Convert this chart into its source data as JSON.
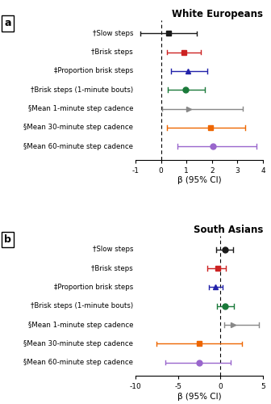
{
  "panel_a": {
    "title": "White Europeans",
    "xlabel": "β (95% CI)",
    "xlim": [
      -1,
      4
    ],
    "xticks": [
      -1,
      0,
      1,
      2,
      3,
      4
    ],
    "xticklabels": [
      "-1",
      "0",
      "1",
      "2",
      "3",
      "4"
    ],
    "vline": 0,
    "labels": [
      "†Slow steps",
      "†Brisk steps",
      "‡Proportion brisk steps",
      "†Brisk steps (1-minute bouts)",
      "§Mean 1-minute step cadence",
      "§Mean 30-minute step cadence",
      "§Mean 60-minute step cadence"
    ],
    "estimates": [
      0.3,
      0.9,
      1.05,
      0.95,
      1.1,
      1.95,
      2.05
    ],
    "ci_low": [
      -0.8,
      0.25,
      0.38,
      0.28,
      0.05,
      0.25,
      0.65
    ],
    "ci_high": [
      1.42,
      1.55,
      1.82,
      1.72,
      3.2,
      3.3,
      3.75
    ],
    "colors": [
      "#1a1a1a",
      "#cc2222",
      "#2222aa",
      "#1a7a3a",
      "#888888",
      "#ee6600",
      "#9966cc"
    ],
    "markers": [
      "s",
      "s",
      "^",
      "o",
      ">",
      "s",
      "o"
    ],
    "markersizes": [
      5,
      5,
      5,
      5,
      5,
      5,
      5
    ]
  },
  "panel_b": {
    "title": "South Asians",
    "xlabel": "β (95% CI)",
    "xlim": [
      -10,
      5
    ],
    "xticks": [
      -10,
      -5,
      0,
      5
    ],
    "xticklabels": [
      "-10",
      "-5",
      "0",
      "5"
    ],
    "vline": 0,
    "labels": [
      "†Slow steps",
      "†Brisk steps",
      "‡Proportion brisk steps",
      "†Brisk steps (1-minute bouts)",
      "§Mean 1-minute step cadence",
      "§Mean 30-minute step cadence",
      "§Mean 60-minute step cadence"
    ],
    "estimates": [
      0.5,
      -0.35,
      -0.55,
      0.55,
      1.5,
      -2.5,
      -2.5
    ],
    "ci_low": [
      -0.5,
      -1.55,
      -1.35,
      -0.45,
      0.45,
      -7.5,
      -6.5
    ],
    "ci_high": [
      1.5,
      0.65,
      0.28,
      1.55,
      4.5,
      2.5,
      1.2
    ],
    "colors": [
      "#1a1a1a",
      "#cc2222",
      "#2222aa",
      "#1a7a3a",
      "#888888",
      "#ee6600",
      "#9966cc"
    ],
    "markers": [
      "o",
      "s",
      "^",
      "o",
      ">",
      "s",
      "o"
    ],
    "markersizes": [
      5,
      5,
      5,
      5,
      5,
      5,
      5
    ]
  },
  "figure_bg": "#ffffff",
  "label_fontsize": 6.2,
  "title_fontsize": 8.5,
  "xlabel_fontsize": 7.5,
  "tick_fontsize": 6.5
}
